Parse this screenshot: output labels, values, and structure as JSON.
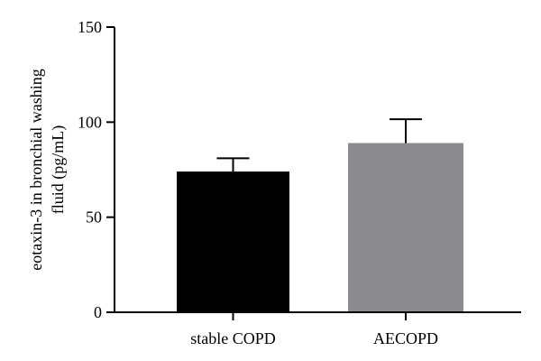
{
  "chart_data": {
    "type": "bar",
    "categories": [
      "stable COPD",
      "AECOPD"
    ],
    "values": [
      74,
      89
    ],
    "errors": [
      7,
      12.5
    ],
    "bar_colors": [
      "#000000",
      "#8c8c90"
    ],
    "ylabel_lines": [
      "eotaxin-3 in bronchial washing",
      "fluid (pg/mL)"
    ],
    "ylim": [
      0,
      150
    ],
    "yticks": [
      0,
      50,
      100,
      150
    ]
  }
}
